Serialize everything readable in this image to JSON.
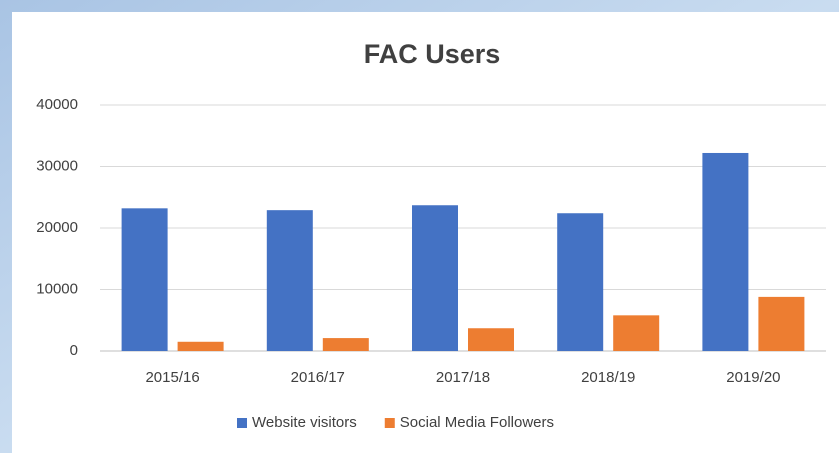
{
  "chart_data": {
    "type": "bar",
    "title": "FAC Users",
    "categories": [
      "2015/16",
      "2016/17",
      "2017/18",
      "2018/19",
      "2019/20"
    ],
    "series": [
      {
        "name": "Website visitors",
        "color": "#4472c4",
        "values": [
          23200,
          22900,
          23700,
          22400,
          32200
        ]
      },
      {
        "name": "Social Media Followers",
        "color": "#ed7d31",
        "values": [
          1500,
          2100,
          3700,
          5800,
          8800
        ]
      }
    ],
    "ylim": [
      0,
      40000
    ],
    "yticks": [
      0,
      10000,
      20000,
      30000,
      40000
    ],
    "grid": true,
    "legend": "bottom"
  }
}
